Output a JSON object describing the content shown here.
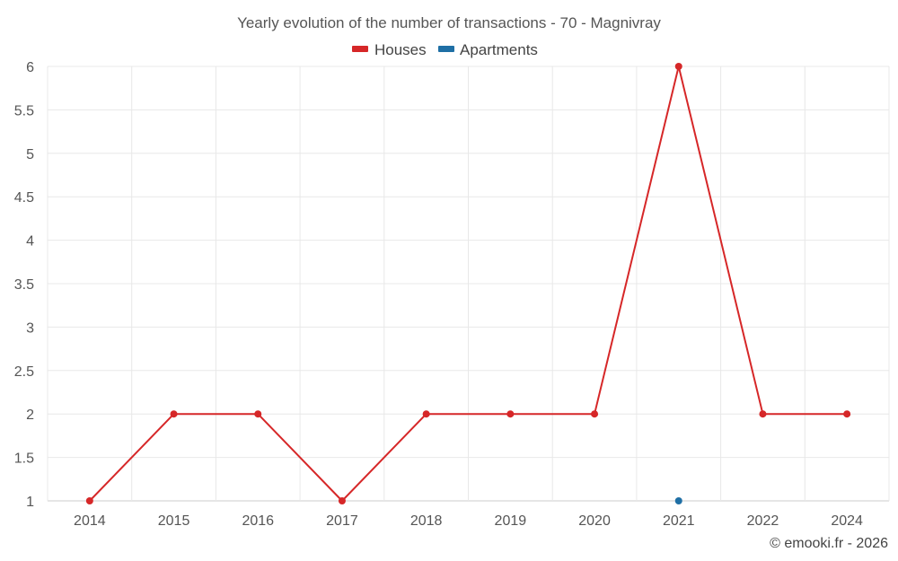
{
  "chart_data": {
    "type": "line",
    "title": "Yearly evolution of the number of transactions - 70 - Magnivray",
    "categories": [
      "2014",
      "2015",
      "2016",
      "2017",
      "2018",
      "2019",
      "2020",
      "2021",
      "2022",
      "2024"
    ],
    "series": [
      {
        "name": "Houses",
        "color": "#d62728",
        "values": [
          1,
          2,
          2,
          1,
          2,
          2,
          2,
          6,
          2,
          2
        ]
      },
      {
        "name": "Apartments",
        "color": "#1f6fa5",
        "values": [
          null,
          null,
          null,
          null,
          null,
          null,
          null,
          1,
          null,
          null
        ]
      }
    ],
    "ylim": [
      1,
      6
    ],
    "yticks": [
      "1",
      "1.5",
      "2",
      "2.5",
      "3",
      "3.5",
      "4",
      "4.5",
      "5",
      "5.5",
      "6"
    ],
    "grid": true,
    "legend_position": "top-center"
  },
  "credit": "© emooki.fr - 2026"
}
